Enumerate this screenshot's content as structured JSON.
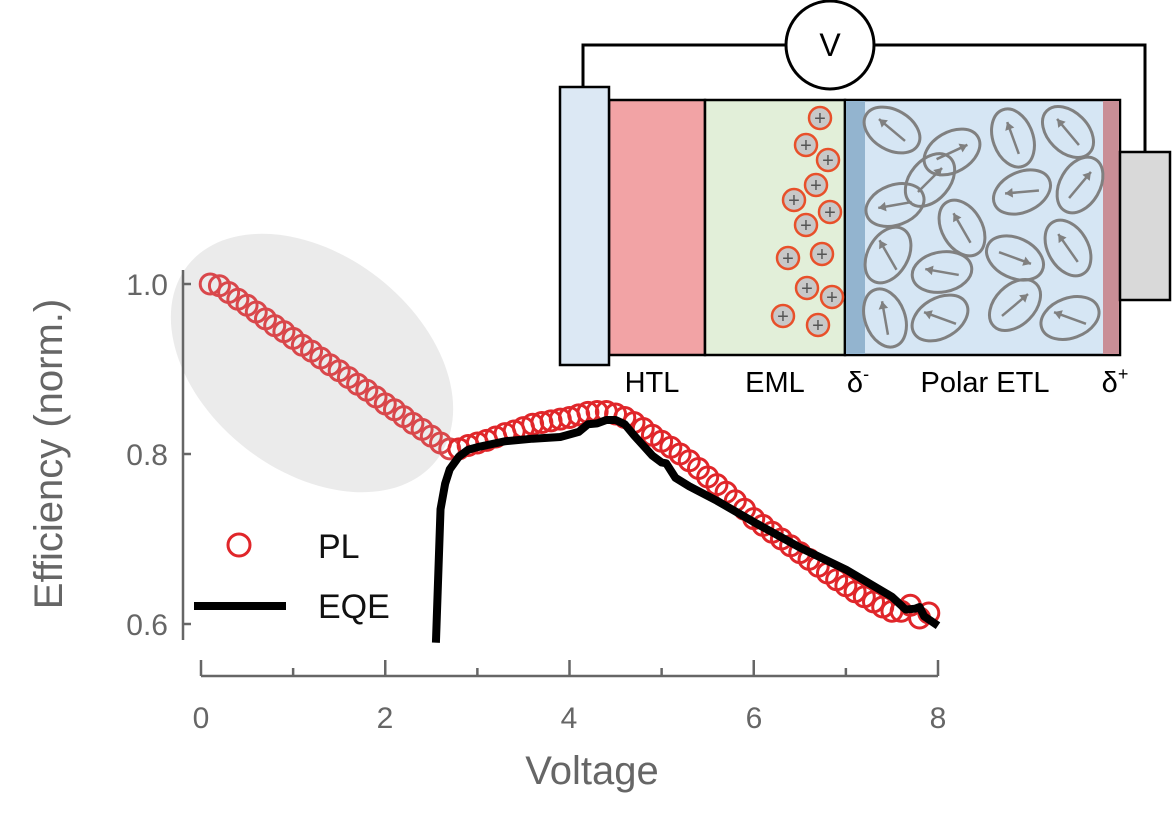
{
  "chart_data": {
    "type": "scatter+line",
    "xlabel": "Voltage",
    "ylabel": "Efficiency (norm.)",
    "xlim": [
      0,
      8
    ],
    "ylim": [
      0.6,
      1.0
    ],
    "x_ticks": [
      "0",
      "2",
      "4",
      "6",
      "8"
    ],
    "y_ticks": [
      "0.6",
      "0.8",
      "1.0"
    ],
    "grid": false,
    "legend_position": "bottom-left",
    "series": [
      {
        "name": "PL",
        "kind": "scatter-open-circle",
        "color": "#e0262a",
        "x": [
          0.1,
          0.2,
          0.3,
          0.4,
          0.5,
          0.6,
          0.7,
          0.8,
          0.9,
          1.0,
          1.1,
          1.2,
          1.3,
          1.4,
          1.5,
          1.6,
          1.7,
          1.8,
          1.9,
          2.0,
          2.1,
          2.2,
          2.3,
          2.4,
          2.5,
          2.6,
          2.7,
          2.8,
          2.9,
          3.0,
          3.1,
          3.2,
          3.3,
          3.4,
          3.5,
          3.6,
          3.7,
          3.8,
          3.9,
          4.0,
          4.1,
          4.2,
          4.3,
          4.4,
          4.5,
          4.6,
          4.7,
          4.8,
          4.9,
          5.0,
          5.1,
          5.2,
          5.3,
          5.4,
          5.5,
          5.6,
          5.7,
          5.8,
          5.9,
          6.0,
          6.1,
          6.2,
          6.3,
          6.4,
          6.5,
          6.6,
          6.7,
          6.8,
          6.9,
          7.0,
          7.1,
          7.2,
          7.3,
          7.4,
          7.5,
          7.6,
          7.7,
          7.8,
          7.9
        ],
        "y": [
          1.0,
          0.998,
          0.99,
          0.982,
          0.975,
          0.967,
          0.959,
          0.951,
          0.944,
          0.936,
          0.928,
          0.921,
          0.913,
          0.905,
          0.898,
          0.89,
          0.882,
          0.875,
          0.867,
          0.859,
          0.852,
          0.844,
          0.836,
          0.829,
          0.821,
          0.813,
          0.806,
          0.806,
          0.81,
          0.813,
          0.816,
          0.82,
          0.824,
          0.827,
          0.831,
          0.835,
          0.837,
          0.839,
          0.841,
          0.843,
          0.846,
          0.849,
          0.85,
          0.85,
          0.847,
          0.843,
          0.837,
          0.83,
          0.822,
          0.815,
          0.808,
          0.8,
          0.792,
          0.783,
          0.773,
          0.764,
          0.755,
          0.745,
          0.735,
          0.724,
          0.716,
          0.708,
          0.7,
          0.692,
          0.684,
          0.676,
          0.668,
          0.66,
          0.652,
          0.645,
          0.638,
          0.632,
          0.626,
          0.62,
          0.615,
          0.615,
          0.622,
          0.607,
          0.613
        ]
      },
      {
        "name": "EQE",
        "kind": "line",
        "color": "#000000",
        "x": [
          2.55,
          2.6,
          2.65,
          2.7,
          2.8,
          2.9,
          3.0,
          3.3,
          3.6,
          3.9,
          4.1,
          4.2,
          4.3,
          4.4,
          4.5,
          4.6,
          4.7,
          4.8,
          4.9,
          5.0,
          5.05,
          5.15,
          5.3,
          5.6,
          6.0,
          6.5,
          7.0,
          7.5,
          7.65,
          7.75,
          7.8,
          7.85,
          8.0
        ],
        "y": [
          0.578,
          0.735,
          0.765,
          0.782,
          0.797,
          0.805,
          0.808,
          0.815,
          0.818,
          0.82,
          0.826,
          0.835,
          0.836,
          0.84,
          0.84,
          0.835,
          0.822,
          0.81,
          0.798,
          0.79,
          0.789,
          0.772,
          0.762,
          0.745,
          0.72,
          0.69,
          0.664,
          0.632,
          0.617,
          0.618,
          0.62,
          0.609,
          0.598
        ]
      }
    ]
  },
  "inset": {
    "voltmeter_label": "V",
    "layers": {
      "htl": "HTL",
      "eml": "EML",
      "delta_minus": "δ",
      "delta_minus_sup": "-",
      "polar_etl": "Polar ETL",
      "delta_plus": "δ",
      "delta_plus_sup": "+"
    },
    "charge_symbol": "+",
    "colors": {
      "electrode_left": "#dce8f4",
      "htl": "#f2a3a5",
      "eml": "#e2efd9",
      "delta_minus": "#93b4cf",
      "polar_etl": "#d6e6f4",
      "delta_plus": "#c98e96",
      "electrode_right": "#d9d9d9",
      "charge_border": "#e8502a",
      "dipole": "#808080"
    }
  },
  "highlight_color": "#ebebeb"
}
